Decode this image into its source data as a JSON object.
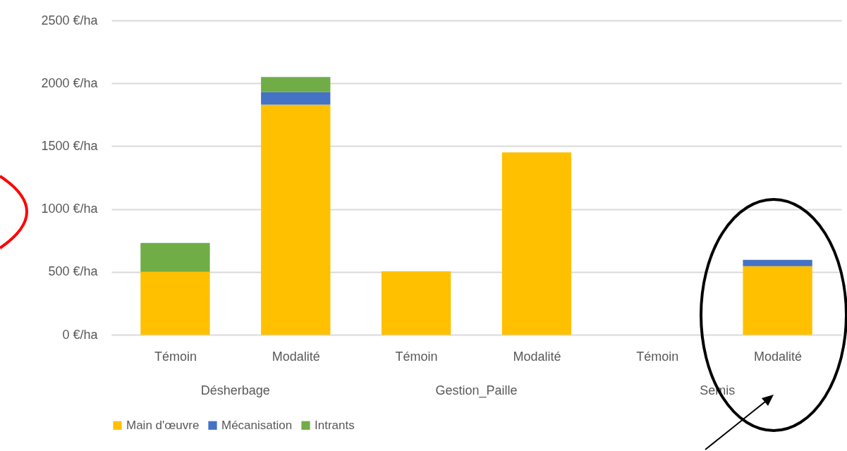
{
  "chart_data": {
    "type": "bar",
    "stacked": true,
    "categories": [
      "Témoin",
      "Modalité",
      "Témoin",
      "Modalité",
      "Témoin",
      "Modalité"
    ],
    "series": [
      {
        "name": "Main d'œuvre",
        "color": "#ffc000",
        "values": [
          500,
          1830,
          505,
          1450,
          0,
          545
        ]
      },
      {
        "name": "Mécanisation",
        "color": "#4472c4",
        "values": [
          0,
          100,
          0,
          0,
          0,
          50
        ]
      },
      {
        "name": "Intrants",
        "color": "#70ad47",
        "values": [
          230,
          120,
          0,
          0,
          0,
          0
        ]
      }
    ],
    "ylim": [
      0,
      2500
    ],
    "yticks": [
      {
        "value": 0,
        "label": "0 €/ha"
      },
      {
        "value": 500,
        "label": "500 €/ha"
      },
      {
        "value": 1000,
        "label": "1000 €/ha"
      },
      {
        "value": 1500,
        "label": "1500 €/ha"
      },
      {
        "value": 2000,
        "label": "2000 €/ha"
      },
      {
        "value": 2500,
        "label": "2500 €/ha"
      }
    ],
    "annotations": [
      "Désherbage",
      "Gestion_Paille",
      "Semis"
    ],
    "grid": "y",
    "legend": "bottom"
  }
}
